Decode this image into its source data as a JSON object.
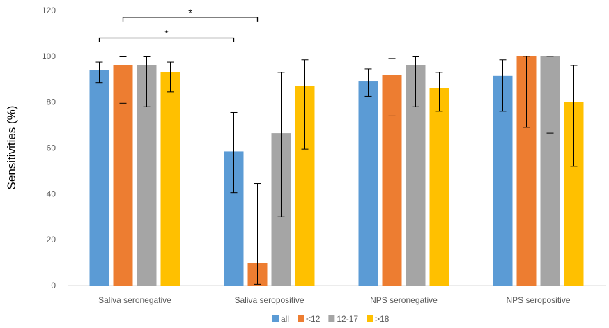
{
  "chart_data": {
    "type": "bar",
    "title": "",
    "ylabel": "Sensitivities (%)",
    "xlabel": "",
    "ylim": [
      0,
      120
    ],
    "yticks": [
      0,
      20,
      40,
      60,
      80,
      100,
      120
    ],
    "grid": false,
    "legend_position": "bottom",
    "categories": [
      "Saliva seronegative",
      "Saliva seropositive",
      "NPS seronegative",
      "NPS seropositive"
    ],
    "series": [
      {
        "name": "all",
        "color": "#5b9bd5",
        "values": [
          94,
          58.5,
          89,
          91.5
        ],
        "err_low": [
          88.5,
          40.5,
          82.5,
          76
        ],
        "err_high": [
          97.5,
          75.5,
          94.5,
          98.5
        ]
      },
      {
        "name": "<12",
        "color": "#ed7d31",
        "values": [
          96,
          10,
          92,
          100
        ],
        "err_low": [
          79.5,
          0.5,
          74,
          69
        ],
        "err_high": [
          99.8,
          44.5,
          99,
          100
        ]
      },
      {
        "name": "12-17",
        "color": "#a5a5a5",
        "values": [
          96,
          66.5,
          96,
          100
        ],
        "err_low": [
          78,
          30,
          78,
          66.5
        ],
        "err_high": [
          99.8,
          93,
          99.8,
          100
        ]
      },
      {
        "name": ">18",
        "color": "#ffc000",
        "values": [
          93,
          87,
          86,
          80
        ],
        "err_low": [
          84.5,
          59.5,
          76,
          52
        ],
        "err_high": [
          97.5,
          98.5,
          93,
          96
        ]
      }
    ],
    "annotations": [
      {
        "text": "*",
        "from": {
          "category": 0,
          "series": 0
        },
        "to": {
          "category": 1,
          "series": 0
        },
        "y": 108
      },
      {
        "text": "*",
        "from": {
          "category": 0,
          "series": 1
        },
        "to": {
          "category": 1,
          "series": 1
        },
        "y": 117
      }
    ]
  }
}
